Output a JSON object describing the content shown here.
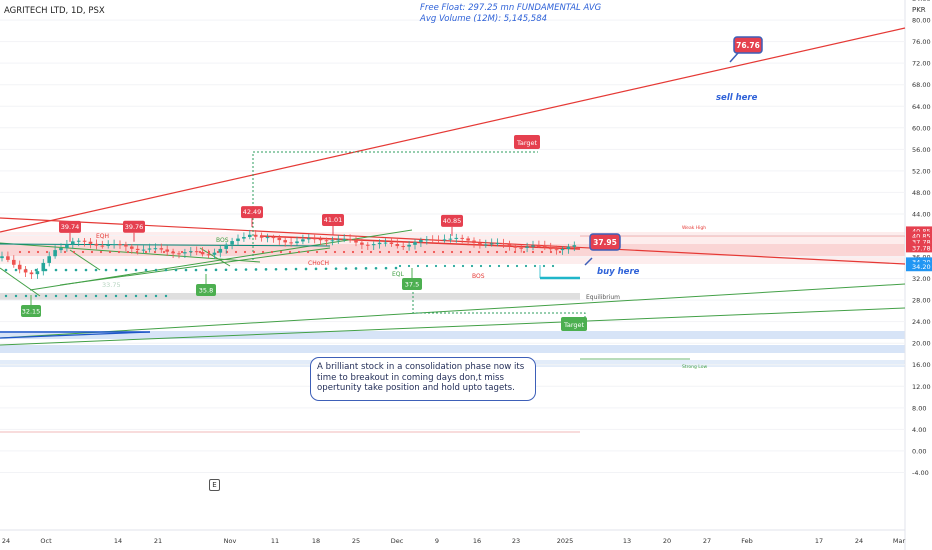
{
  "header": {
    "symbol": "AGRITECH LTD, 1D, PSX",
    "free_float": "Free Float: 297.25 mn FUNDAMENTAL AVG",
    "avg_volume": "Avg Volume (12M): 5,145,584",
    "currency": "PKR"
  },
  "chart_data": {
    "type": "candlestick",
    "y_axis": {
      "ticks": [
        "84.00",
        "80.00",
        "76.00",
        "72.00",
        "68.00",
        "64.00",
        "60.00",
        "56.00",
        "52.00",
        "48.00",
        "44.00",
        "40.00",
        "36.00",
        "32.00",
        "28.00",
        "24.00",
        "20.00",
        "16.00",
        "12.00",
        "8.00",
        "4.00",
        "0.00",
        "-4.00"
      ],
      "price_labels": [
        {
          "text": "40.85",
          "value": 40.85,
          "color": "#e5404f"
        },
        {
          "text": "40.85",
          "value": 39.9,
          "color": "#e5404f"
        },
        {
          "text": "37.78",
          "value": 38.8,
          "color": "#e5404f"
        },
        {
          "text": "37.78",
          "value": 37.7,
          "color": "#e5404f"
        },
        {
          "text": "36.00",
          "value": 36.0,
          "color": "#ffffff"
        },
        {
          "text": "34.20",
          "value": 35.1,
          "color": "#2196f3"
        },
        {
          "text": "34.20",
          "value": 34.2,
          "color": "#2196f3"
        }
      ]
    },
    "x_axis": {
      "ticks": [
        {
          "label": "24",
          "pos": 6
        },
        {
          "label": "Oct",
          "pos": 46
        },
        {
          "label": "14",
          "pos": 118
        },
        {
          "label": "21",
          "pos": 158
        },
        {
          "label": "Nov",
          "pos": 230
        },
        {
          "label": "11",
          "pos": 275
        },
        {
          "label": "18",
          "pos": 316
        },
        {
          "label": "25",
          "pos": 356
        },
        {
          "label": "Dec",
          "pos": 397
        },
        {
          "label": "9",
          "pos": 437
        },
        {
          "label": "16",
          "pos": 477
        },
        {
          "label": "23",
          "pos": 516
        },
        {
          "label": "2025",
          "pos": 565
        },
        {
          "label": "13",
          "pos": 627
        },
        {
          "label": "20",
          "pos": 667
        },
        {
          "label": "27",
          "pos": 707
        },
        {
          "label": "Feb",
          "pos": 747
        },
        {
          "label": "17",
          "pos": 819
        },
        {
          "label": "24",
          "pos": 859
        },
        {
          "label": "Mar",
          "pos": 899
        }
      ]
    },
    "annotations": {
      "pivot_highs": [
        {
          "text": "39.74",
          "value": 39.74
        },
        {
          "text": "39.76",
          "value": 39.76
        },
        {
          "text": "42.49",
          "value": 42.49
        },
        {
          "text": "41.01",
          "value": 41.01
        },
        {
          "text": "40.85",
          "value": 40.85
        }
      ],
      "pivot_lows": [
        {
          "text": "32.15",
          "value": 32.15
        },
        {
          "text": "35.8",
          "value": 35.8
        },
        {
          "text": "37.5",
          "value": 37.5
        }
      ],
      "faded_low_label": "33.75",
      "current_price": "37.95",
      "target_sell_price": "76.76",
      "target_up": "Target",
      "target_down": "Target",
      "sell_text": "sell here",
      "buy_text": "buy here",
      "small_labels": {
        "egh": "EQH",
        "bos_left": "BOS",
        "bos_right": "BOS",
        "choch": "CHoCH",
        "eql": "EQL",
        "equilibrium": "Equilibrium",
        "weak_high": "Weak High",
        "strong_low": "Strong Low"
      }
    }
  },
  "note": {
    "text": "A brilliant stock in a consolidation phase now its time to breakout in coming days don,t miss opertunity take position and hold upto tagets."
  },
  "event_marker": "E",
  "colors": {
    "up": "#26a69a",
    "down": "#ef5350",
    "green_line": "#43a047",
    "red_line": "#e53935",
    "label_red": "#e5404f",
    "label_green": "#4caf50",
    "blue_text": "#2f62d8"
  }
}
